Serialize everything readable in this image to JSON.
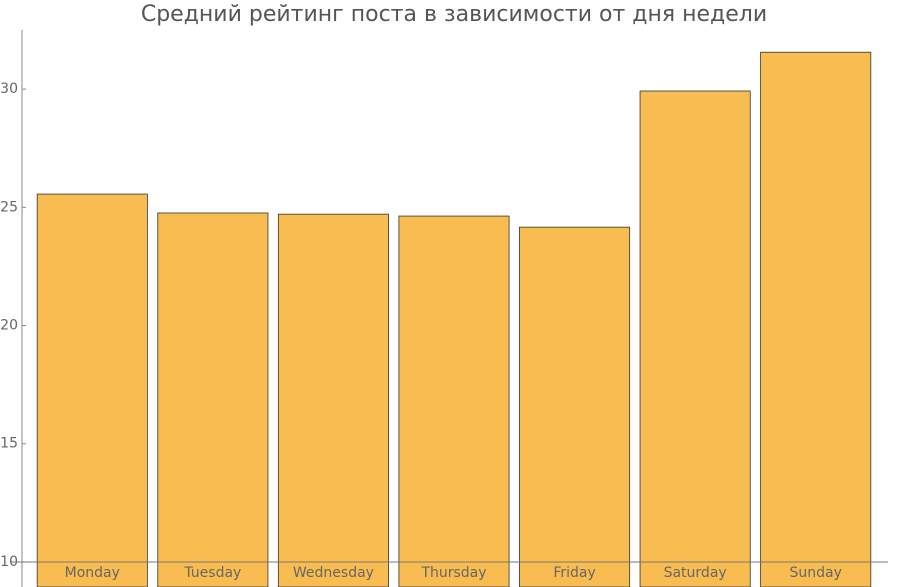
{
  "chart_data": {
    "type": "bar",
    "title": "Средний рейтинг поста в зависимости от дня недели",
    "categories": [
      "Monday",
      "Tuesday",
      "Wednesday",
      "Thursday",
      "Friday",
      "Saturday",
      "Sunday"
    ],
    "values": [
      25.56,
      24.76,
      24.71,
      24.63,
      24.16,
      29.92,
      31.56
    ],
    "color": "#f9bc51",
    "ylim": [
      8.94,
      32.5
    ],
    "yticks": [
      10,
      15,
      20,
      25,
      30
    ],
    "grid": false
  }
}
